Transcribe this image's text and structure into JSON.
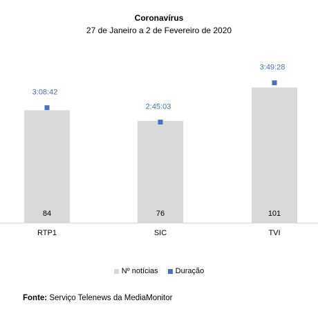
{
  "chart_data": {
    "type": "bar",
    "title": "Coronavírus",
    "subtitle": "27 de Janeiro a 2 de Fevereiro de 2020",
    "categories": [
      "RTP1",
      "SIC",
      "TVI"
    ],
    "series": [
      {
        "name": "Nº notícias",
        "type": "bar",
        "values": [
          84,
          76,
          101
        ]
      },
      {
        "name": "Duração",
        "type": "scatter",
        "values": [
          "3:08:42",
          "2:45:03",
          "3:49:28"
        ],
        "seconds": [
          11322,
          9903,
          13768
        ]
      }
    ],
    "colors": {
      "bar": "#d9d9d9",
      "marker": "#4472c4",
      "duration_label": "#4472c4"
    },
    "legend": "bottom",
    "grid": false
  },
  "source": {
    "label": "Fonte:",
    "text": "Serviço Telenews da MediaMonitor"
  }
}
